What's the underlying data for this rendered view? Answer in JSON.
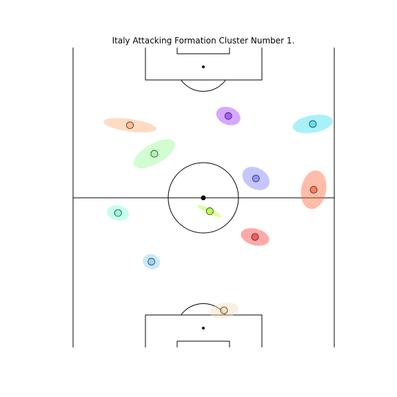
{
  "chart_data": {
    "type": "scatter",
    "title": "Italy Attacking Formation Cluster Number 1.",
    "xlabel": "",
    "ylabel": "",
    "grid": false,
    "pitch": {
      "length": 120,
      "width": 90,
      "orientation": "vertical",
      "line_color": "#000000"
    },
    "clusters": [
      {
        "x": 52.0,
        "y": 14.8,
        "sx": 5.0,
        "sy": 3.0,
        "angle": -10,
        "color": "#f5deb3"
      },
      {
        "x": 27.0,
        "y": 34.3,
        "sx": 3.0,
        "sy": 3.0,
        "angle": 20,
        "color": "#87cefa"
      },
      {
        "x": 15.5,
        "y": 53.8,
        "sx": 3.8,
        "sy": 3.0,
        "angle": 10,
        "color": "#7fffd4"
      },
      {
        "x": 28.0,
        "y": 77.5,
        "sx": 8.0,
        "sy": 4.0,
        "angle": -30,
        "color": "#98fb98"
      },
      {
        "x": 19.6,
        "y": 88.9,
        "sx": 9.2,
        "sy": 2.5,
        "angle": 8,
        "color": "#ffb07c"
      },
      {
        "x": 47.1,
        "y": 54.5,
        "sx": 4.5,
        "sy": 1.0,
        "angle": 25,
        "color": "#adff2f"
      },
      {
        "x": 63.0,
        "y": 67.6,
        "sx": 5.0,
        "sy": 4.2,
        "angle": 30,
        "color": "#8080ff"
      },
      {
        "x": 62.7,
        "y": 44.2,
        "sx": 5.0,
        "sy": 3.3,
        "angle": 15,
        "color": "#ff4040"
      },
      {
        "x": 53.5,
        "y": 92.6,
        "sx": 4.3,
        "sy": 3.5,
        "angle": 20,
        "color": "#a040ff"
      },
      {
        "x": 82.6,
        "y": 89.4,
        "sx": 7.0,
        "sy": 3.5,
        "angle": -10,
        "color": "#40e0f0"
      },
      {
        "x": 82.9,
        "y": 63.1,
        "sx": 4.3,
        "sy": 7.8,
        "angle": 10,
        "color": "#ff6a40"
      }
    ]
  }
}
